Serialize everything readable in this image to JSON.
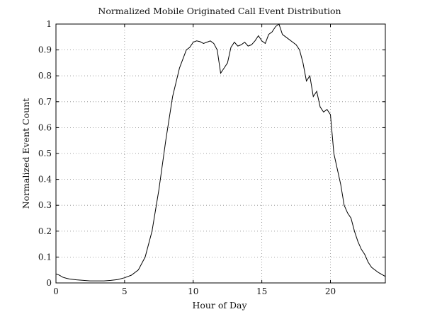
{
  "chart_data": {
    "type": "line",
    "title": "Normalized Mobile Originated Call Event Distribution",
    "xlabel": "Hour of Day",
    "ylabel": "Normalized Event Count",
    "xlim": [
      0,
      24
    ],
    "ylim": [
      0,
      1
    ],
    "xticks": [
      0,
      5,
      10,
      15,
      20
    ],
    "yticks": [
      0,
      0.1,
      0.2,
      0.3,
      0.4,
      0.5,
      0.6,
      0.7,
      0.8,
      0.9,
      1
    ],
    "xtick_labels": [
      "0",
      "5",
      "10",
      "15",
      "20"
    ],
    "ytick_labels": [
      "0",
      "0.1",
      "0.2",
      "0.3",
      "0.4",
      "0.5",
      "0.6",
      "0.7",
      "0.8",
      "0.9",
      "1"
    ],
    "grid": true,
    "legend": "none",
    "series": [
      {
        "x": [
          0,
          0.25,
          0.5,
          0.75,
          1,
          1.5,
          2,
          2.5,
          3,
          3.5,
          4,
          4.5,
          5,
          5.5,
          6,
          6.5,
          7,
          7.5,
          8,
          8.5,
          9,
          9.5,
          9.75,
          10,
          10.25,
          10.5,
          10.75,
          11,
          11.25,
          11.5,
          11.75,
          12,
          12.25,
          12.5,
          12.75,
          13,
          13.25,
          13.5,
          13.75,
          14,
          14.25,
          14.5,
          14.75,
          15,
          15.25,
          15.5,
          15.75,
          16,
          16.25,
          16.5,
          16.75,
          17,
          17.25,
          17.5,
          17.75,
          18,
          18.25,
          18.5,
          18.75,
          19,
          19.25,
          19.5,
          19.75,
          20,
          20.25,
          20.5,
          20.75,
          21,
          21.25,
          21.5,
          21.75,
          22,
          22.25,
          22.5,
          22.75,
          23,
          23.5,
          24
        ],
        "y": [
          0.035,
          0.03,
          0.022,
          0.018,
          0.015,
          0.012,
          0.01,
          0.008,
          0.008,
          0.008,
          0.01,
          0.013,
          0.02,
          0.03,
          0.05,
          0.1,
          0.2,
          0.36,
          0.55,
          0.72,
          0.83,
          0.9,
          0.91,
          0.93,
          0.935,
          0.932,
          0.925,
          0.93,
          0.935,
          0.925,
          0.9,
          0.81,
          0.83,
          0.85,
          0.91,
          0.93,
          0.915,
          0.92,
          0.93,
          0.915,
          0.92,
          0.935,
          0.955,
          0.935,
          0.925,
          0.96,
          0.97,
          0.99,
          1.0,
          0.96,
          0.95,
          0.94,
          0.93,
          0.92,
          0.9,
          0.85,
          0.78,
          0.8,
          0.72,
          0.74,
          0.68,
          0.66,
          0.67,
          0.65,
          0.5,
          0.44,
          0.38,
          0.3,
          0.27,
          0.25,
          0.2,
          0.16,
          0.13,
          0.11,
          0.08,
          0.06,
          0.04,
          0.025
        ]
      }
    ]
  }
}
